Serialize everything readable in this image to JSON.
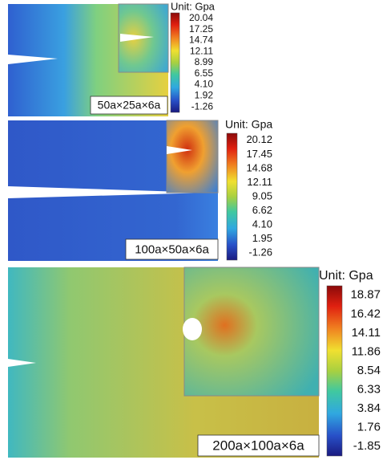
{
  "panels": [
    {
      "label": "50a×25a×6a",
      "unit": "Unit: Gpa",
      "ticks": [
        "20.04",
        "17.25",
        "14.74",
        "12.11",
        "8.99",
        "6.55",
        "4.10",
        "1.92",
        "-1.26"
      ]
    },
    {
      "label": "100a×50a×6a",
      "unit": "Unit: Gpa",
      "ticks": [
        "20.12",
        "17.45",
        "14.68",
        "12.11",
        "9.05",
        "6.62",
        "4.10",
        "1.95",
        "-1.26"
      ]
    },
    {
      "label": "200a×100a×6a",
      "unit": "Unit: Gpa",
      "ticks": [
        "18.87",
        "16.42",
        "14.11",
        "11.86",
        "8.54",
        "6.33",
        "3.84",
        "1.76",
        "-1.85"
      ]
    }
  ]
}
